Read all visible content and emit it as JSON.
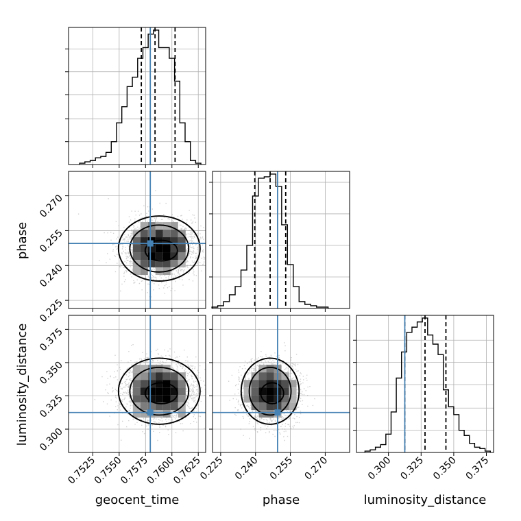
{
  "figure": {
    "colors": {
      "truth": "#4682b4",
      "hist": "#000000",
      "grid": "#b0b0b0",
      "points": "#9a9a9a"
    }
  },
  "chart_data": [
    {
      "type": "line",
      "panel": "geocent_time_hist",
      "xlim": [
        0.7502,
        0.7632
      ],
      "x": [
        0.7515,
        0.752,
        0.7525,
        0.753,
        0.7535,
        0.754,
        0.7545,
        0.755,
        0.7555,
        0.756,
        0.7565,
        0.757,
        0.7575,
        0.758,
        0.7585,
        0.759,
        0.7595,
        0.76,
        0.7605,
        0.761,
        0.7615,
        0.762,
        0.7625
      ],
      "values": [
        0.01,
        0.02,
        0.03,
        0.05,
        0.06,
        0.09,
        0.17,
        0.31,
        0.43,
        0.58,
        0.65,
        0.79,
        0.87,
        0.97,
        1.0,
        0.87,
        0.87,
        0.79,
        0.62,
        0.31,
        0.17,
        0.03,
        0.01
      ],
      "quantiles": [
        0.7571,
        0.7584,
        0.7603
      ],
      "truth": 0.75795,
      "xticks": [
        "0.7525",
        "0.7550",
        "0.7575",
        "0.7600",
        "0.7625"
      ],
      "xlabel": "geocent_time"
    },
    {
      "type": "line",
      "panel": "phase_hist",
      "xlim": [
        0.2215,
        0.2805
      ],
      "x": [
        0.2225,
        0.225,
        0.2275,
        0.23,
        0.2325,
        0.235,
        0.2375,
        0.24,
        0.2425,
        0.245,
        0.2475,
        0.25,
        0.2525,
        0.255,
        0.2575,
        0.26,
        0.2625,
        0.265,
        0.2675,
        0.27
      ],
      "values": [
        0.01,
        0.02,
        0.05,
        0.1,
        0.16,
        0.28,
        0.46,
        0.82,
        0.95,
        0.96,
        0.98,
        0.89,
        0.61,
        0.32,
        0.16,
        0.05,
        0.03,
        0.02,
        0.01,
        0.01
      ],
      "quantiles": [
        0.2397,
        0.2463,
        0.253
      ],
      "truth": 0.2495,
      "xticks": [
        "0.225",
        "0.240",
        "0.255",
        "0.270"
      ],
      "xlabel": "phase"
    },
    {
      "type": "line",
      "panel": "luminosity_distance_hist",
      "xlim": [
        0.2755,
        0.3805
      ],
      "x": [
        0.284,
        0.288,
        0.292,
        0.296,
        0.3,
        0.304,
        0.308,
        0.312,
        0.316,
        0.32,
        0.324,
        0.328,
        0.332,
        0.336,
        0.34,
        0.344,
        0.348,
        0.352,
        0.356,
        0.36,
        0.364,
        0.368,
        0.372,
        0.376
      ],
      "values": [
        0.01,
        0.02,
        0.04,
        0.06,
        0.14,
        0.31,
        0.57,
        0.77,
        0.92,
        0.96,
        1.0,
        1.03,
        0.9,
        0.83,
        0.75,
        0.48,
        0.35,
        0.29,
        0.17,
        0.13,
        0.07,
        0.04,
        0.03,
        0.01
      ],
      "quantiles": [
        0.3125,
        0.328,
        0.344
      ],
      "truth": 0.3125,
      "xticks": [
        "0.300",
        "0.325",
        "0.350",
        "0.375"
      ],
      "xlabel": "luminosity_distance"
    },
    {
      "type": "heatmap",
      "panel": "geocent_time_vs_phase",
      "xlim": [
        0.7502,
        0.7632
      ],
      "ylim": [
        0.2215,
        0.2805
      ],
      "mean": [
        0.7588,
        0.2473
      ],
      "sd": [
        0.0018,
        0.0062
      ],
      "truth": [
        0.75795,
        0.2495
      ],
      "yticks": [
        "0.225",
        "0.240",
        "0.255",
        "0.270"
      ],
      "ylabel": "phase"
    },
    {
      "type": "heatmap",
      "panel": "geocent_time_vs_luminosity_distance",
      "xlim": [
        0.7502,
        0.7632
      ],
      "ylim": [
        0.2825,
        0.3855
      ],
      "mean": [
        0.7588,
        0.3285
      ],
      "sd": [
        0.0018,
        0.011
      ],
      "truth": [
        0.75795,
        0.3125
      ],
      "yticks": [
        "0.300",
        "0.325",
        "0.350",
        "0.375"
      ],
      "ylabel": "luminosity_distance"
    },
    {
      "type": "heatmap",
      "panel": "phase_vs_luminosity_distance",
      "xlim": [
        0.2215,
        0.2805
      ],
      "ylim": [
        0.2825,
        0.3855
      ],
      "mean": [
        0.2463,
        0.3285
      ],
      "sd": [
        0.0058,
        0.011
      ],
      "truth": [
        0.2495,
        0.3125
      ]
    }
  ]
}
